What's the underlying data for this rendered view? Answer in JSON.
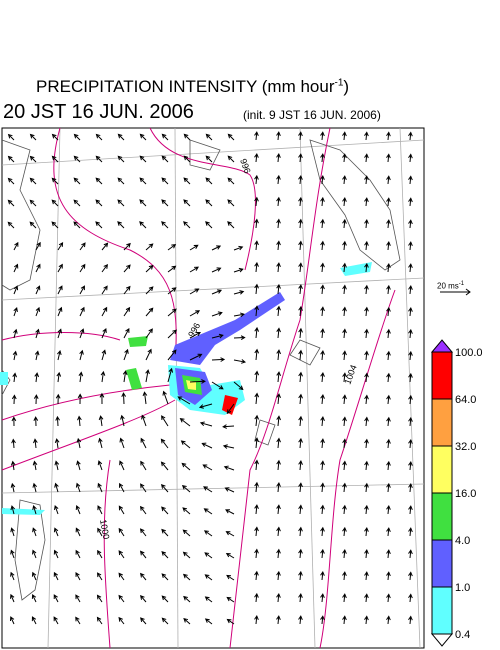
{
  "header": {
    "title": {
      "text": "PRECIPITATION INTENSITY (mm hour",
      "sup": "-1",
      "close": ")"
    },
    "valid_time": "20 JST 16 JUN. 2006",
    "init_time": "(init. 9 JST 16 JUN. 2006)"
  },
  "wind_scale": {
    "text": "20 ms",
    "sup": "-1"
  },
  "contour_labels": [
    "996",
    "996",
    "1004",
    "1000"
  ],
  "colorbar": {
    "labels": [
      "100.0",
      "64.0",
      "32.0",
      "16.0",
      "4.0",
      "1.0",
      "0.4"
    ],
    "colors": [
      "#9b30ff",
      "#ff0000",
      "#ffa040",
      "#ffff60",
      "#40e040",
      "#6060ff",
      "#60ffff",
      "#ffffff"
    ]
  }
}
